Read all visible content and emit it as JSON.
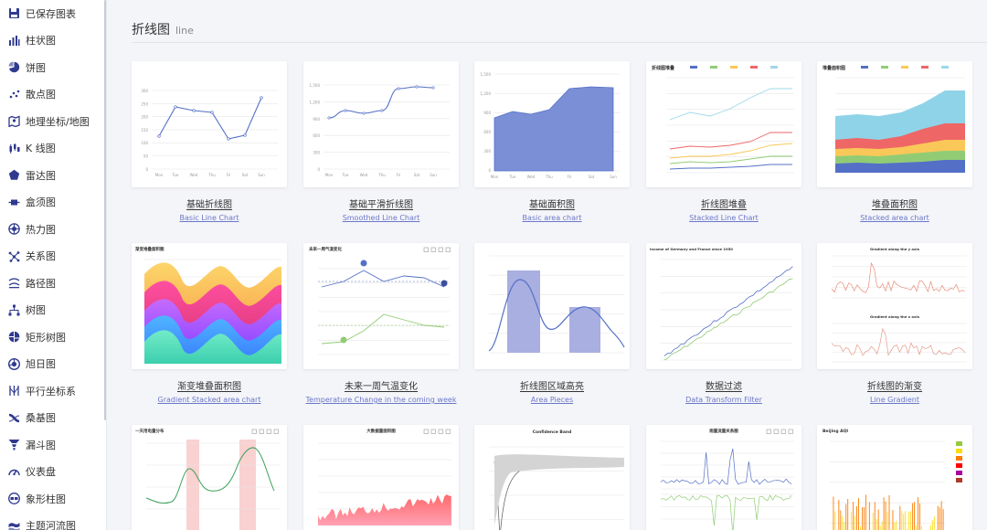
{
  "sidebar": {
    "items": [
      {
        "label": "已保存图表",
        "icon": "save-icon"
      },
      {
        "label": "柱状图",
        "icon": "bar-chart-icon"
      },
      {
        "label": "饼图",
        "icon": "pie-chart-icon"
      },
      {
        "label": "散点图",
        "icon": "scatter-icon"
      },
      {
        "label": "地理坐标/地图",
        "icon": "geo-map-icon"
      },
      {
        "label": "K 线图",
        "icon": "candlestick-icon"
      },
      {
        "label": "雷达图",
        "icon": "radar-icon"
      },
      {
        "label": "盒须图",
        "icon": "boxplot-icon"
      },
      {
        "label": "热力图",
        "icon": "heatmap-icon"
      },
      {
        "label": "关系图",
        "icon": "graph-icon"
      },
      {
        "label": "路径图",
        "icon": "lines-icon"
      },
      {
        "label": "树图",
        "icon": "tree-icon"
      },
      {
        "label": "矩形树图",
        "icon": "treemap-icon"
      },
      {
        "label": "旭日图",
        "icon": "sunburst-icon"
      },
      {
        "label": "平行坐标系",
        "icon": "parallel-icon"
      },
      {
        "label": "桑基图",
        "icon": "sankey-icon"
      },
      {
        "label": "漏斗图",
        "icon": "funnel-icon"
      },
      {
        "label": "仪表盘",
        "icon": "gauge-icon"
      },
      {
        "label": "象形柱图",
        "icon": "pictorial-bar-icon"
      },
      {
        "label": "主题河流图",
        "icon": "theme-river-icon"
      }
    ]
  },
  "section": {
    "title": "折线图",
    "subtitle": "line"
  },
  "colors": {
    "accent": "#5470c6",
    "link": "#6b77c8",
    "page_bg": "#f4f5f9"
  },
  "cards": [
    {
      "title": "基础折线图",
      "subtitle": "Basic Line Chart",
      "thumb": "basic-line"
    },
    {
      "title": "基础平滑折线图",
      "subtitle": "Smoothed Line Chart",
      "thumb": "smooth-line"
    },
    {
      "title": "基础面积图",
      "subtitle": "Basic area chart",
      "thumb": "basic-area"
    },
    {
      "title": "折线图堆叠",
      "subtitle": "Stacked Line Chart",
      "thumb": "stacked-line"
    },
    {
      "title": "堆叠面积图",
      "subtitle": "Stacked area chart",
      "thumb": "stacked-area"
    },
    {
      "title": "渐变堆叠面积图",
      "subtitle": "Gradient Stacked area chart",
      "thumb": "gradient-stacked"
    },
    {
      "title": "未来一周气温变化",
      "subtitle": "Temperature Change in the coming week",
      "thumb": "temperature"
    },
    {
      "title": "折线图区域高亮",
      "subtitle": "Area Pieces",
      "thumb": "area-pieces"
    },
    {
      "title": "数据过滤",
      "subtitle": "Data Transform Filter",
      "thumb": "transform-filter"
    },
    {
      "title": "折线图的渐变",
      "subtitle": "Line Gradient",
      "thumb": "line-gradient"
    },
    {
      "title": "",
      "subtitle": "",
      "thumb": "electricity"
    },
    {
      "title": "",
      "subtitle": "",
      "thumb": "large-area"
    },
    {
      "title": "",
      "subtitle": "",
      "thumb": "confidence-band"
    },
    {
      "title": "",
      "subtitle": "",
      "thumb": "rainfall"
    },
    {
      "title": "",
      "subtitle": "",
      "thumb": "beijing-aqi"
    }
  ],
  "thumb_text": {
    "basic_line_days": [
      "Mon",
      "Tue",
      "Wed",
      "Thu",
      "Fri",
      "Sat",
      "Sun"
    ],
    "basic_line_ticks": [
      "300",
      "250",
      "200",
      "150",
      "100",
      "50",
      "0"
    ],
    "area_ticks": [
      "1,500",
      "1,200",
      "900",
      "600",
      "300",
      "0"
    ],
    "stacked_line_title": "折线图堆叠",
    "stacked_area_title": "堆叠面积图",
    "gradient_stacked_title": "渐变堆叠面积图",
    "temperature_title": "未来一周气温变化",
    "transform_title": "Income of Germany and France since 1950",
    "gradient_y_title": "Gradient along the y axis",
    "gradient_x_title": "Gradient along the x axis",
    "electricity_title": "一天用电量分布",
    "large_area_title": "大数据量面积图",
    "confidence_title": "Confidence Band",
    "rainfall_title": "雨量流量关系图",
    "aqi_title": "Beijing AQI"
  }
}
